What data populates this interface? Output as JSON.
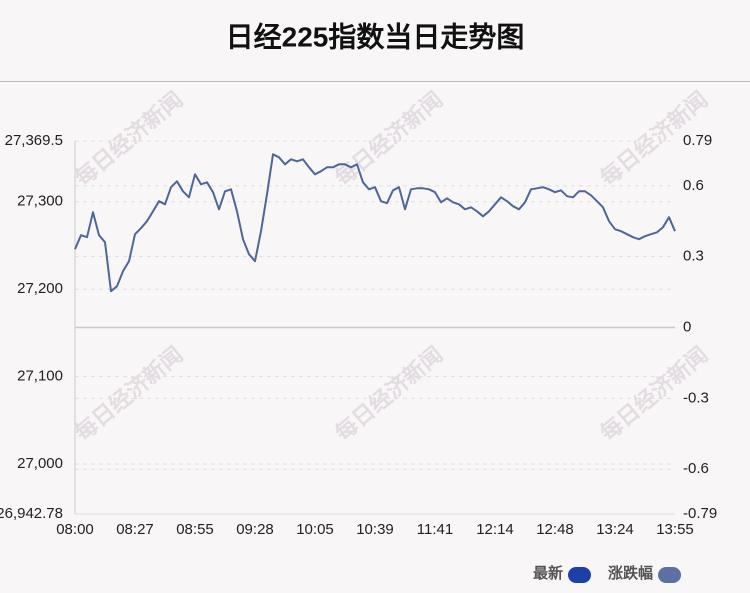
{
  "chart_data": {
    "type": "line",
    "title": "日经225指数当日走势图",
    "watermark": "每日经济新闻",
    "categories": [
      "08:00",
      null,
      null,
      null,
      null,
      null,
      null,
      null,
      null,
      null,
      "08:27",
      null,
      null,
      null,
      null,
      null,
      null,
      null,
      null,
      null,
      "08:55",
      null,
      null,
      null,
      null,
      null,
      null,
      null,
      null,
      null,
      "09:28",
      null,
      null,
      null,
      null,
      null,
      null,
      null,
      null,
      null,
      "10:05",
      null,
      null,
      null,
      null,
      null,
      null,
      null,
      null,
      null,
      "10:39",
      null,
      null,
      null,
      null,
      null,
      null,
      null,
      null,
      null,
      "11:41",
      null,
      null,
      null,
      null,
      null,
      null,
      null,
      null,
      null,
      "12:14",
      null,
      null,
      null,
      null,
      null,
      null,
      null,
      null,
      null,
      "12:48",
      null,
      null,
      null,
      null,
      null,
      null,
      null,
      null,
      null,
      "13:24",
      null,
      null,
      null,
      null,
      null,
      null,
      null,
      null,
      null,
      "13:55"
    ],
    "series": [
      {
        "name": "最新",
        "color": "#4e6798",
        "values": [
          27245.7,
          27261.7,
          27259.4,
          27288.0,
          27261.7,
          27253.7,
          27197.7,
          27203.4,
          27220.6,
          27232.0,
          27262.9,
          27269.7,
          27277.7,
          27289.1,
          27300.6,
          27297.1,
          27316.6,
          27323.4,
          27312.0,
          27305.1,
          27331.4,
          27320.0,
          27322.3,
          27310.9,
          27291.4,
          27312.0,
          27314.3,
          27289.1,
          27257.1,
          27240.0,
          27232.0,
          27266.3,
          27308.6,
          27354.3,
          27350.9,
          27342.9,
          27348.6,
          27346.3,
          27348.6,
          27339.4,
          27331.4,
          27334.9,
          27339.4,
          27339.4,
          27342.9,
          27342.9,
          27339.4,
          27342.9,
          27322.3,
          27314.3,
          27316.6,
          27300.6,
          27298.3,
          27313.1,
          27316.6,
          27291.4,
          27314.3,
          27315.4,
          27315.4,
          27314.3,
          27310.9,
          27299.4,
          27304.0,
          27299.4,
          27297.1,
          27291.4,
          27293.7,
          27289.1,
          27283.4,
          27289.1,
          27297.1,
          27305.1,
          27300.6,
          27294.9,
          27291.4,
          27299.4,
          27314.3,
          27315.4,
          27316.6,
          27314.3,
          27310.9,
          27313.1,
          27306.3,
          27305.1,
          27312.0,
          27312.0,
          27307.4,
          27300.6,
          27293.7,
          27277.7,
          27268.6,
          27266.3,
          27262.9,
          27259.4,
          27257.1,
          27260.6,
          27262.9,
          27265.1,
          27270.9,
          27282.3,
          27266.3
        ]
      }
    ],
    "legend": [
      {
        "name": "最新",
        "color": "#1d3fa8"
      },
      {
        "name": "涨跌幅",
        "color": "#5c71a3"
      }
    ],
    "ylim": [
      26942.78,
      27369.5
    ],
    "yticks": [
      {
        "value": 26942.78,
        "label": "26,942.78"
      },
      {
        "value": 27000,
        "label": "27,000"
      },
      {
        "value": 27100,
        "label": "27,100"
      },
      {
        "value": 27200,
        "label": "27,200"
      },
      {
        "value": 27300,
        "label": "27,300"
      },
      {
        "value": 27369.5,
        "label": "27,369.5"
      }
    ],
    "y2lim": [
      -0.79,
      0.79
    ],
    "y2ticks": [
      -0.79,
      -0.6,
      -0.3,
      0,
      0.3,
      0.6,
      0.79
    ],
    "grid": true
  }
}
